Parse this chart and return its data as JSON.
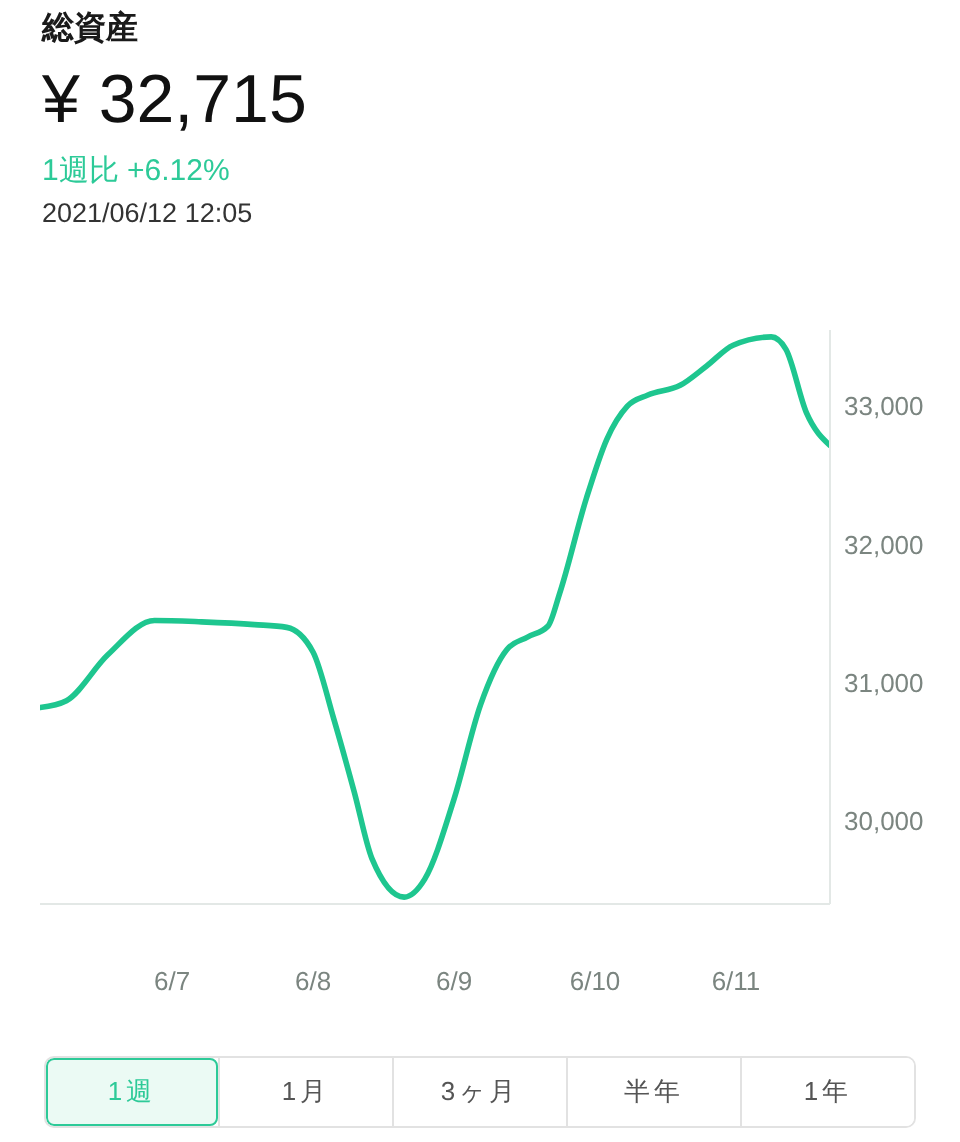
{
  "chart_data": {
    "type": "line",
    "title": "総資産",
    "subtitle": "¥ 32,715",
    "annotations": [
      "1週比 +6.12%",
      "2021/06/12 12:05",
      "1週",
      "1月",
      "3ヶ月",
      "半年",
      "1年"
    ],
    "x": [
      "2021-06-06T01:30",
      "2021-06-06T06:00",
      "2021-06-06T13:00",
      "2021-06-06T21:00",
      "2021-06-07T05:00",
      "2021-06-07T14:00",
      "2021-06-07T19:30",
      "2021-06-08T00:00",
      "2021-06-08T03:30",
      "2021-06-08T07:00",
      "2021-06-08T10:00",
      "2021-06-08T15:30",
      "2021-06-08T19:00",
      "2021-06-09T00:00",
      "2021-06-09T04:30",
      "2021-06-09T09:00",
      "2021-06-09T12:30",
      "2021-06-09T16:00",
      "2021-06-09T18:00",
      "2021-06-09T22:30",
      "2021-06-10T02:00",
      "2021-06-10T05:30",
      "2021-06-10T09:00",
      "2021-06-10T14:30",
      "2021-06-10T19:00",
      "2021-06-10T23:30",
      "2021-06-11T06:00",
      "2021-06-11T08:30",
      "2021-06-11T12:00",
      "2021-06-11T16:00"
    ],
    "values": [
      30820,
      30870,
      31200,
      31450,
      31440,
      31420,
      31400,
      31220,
      30740,
      30210,
      29730,
      29450,
      29580,
      30160,
      30840,
      31240,
      31330,
      31410,
      31650,
      32330,
      32760,
      33000,
      33080,
      33150,
      33290,
      33440,
      33500,
      33410,
      32950,
      32715
    ],
    "color": "#1ec68f",
    "xlim": [
      "2021-06-06T01:30",
      "2021-06-11T16:00"
    ],
    "xticks": [
      {
        "value": "2021-06-07",
        "label": "6/7"
      },
      {
        "value": "2021-06-08",
        "label": "6/8"
      },
      {
        "value": "2021-06-09",
        "label": "6/9"
      },
      {
        "value": "2021-06-10",
        "label": "6/10"
      },
      {
        "value": "2021-06-11",
        "label": "6/11"
      }
    ],
    "ylim": [
      29400,
      33550
    ],
    "yticks": [
      {
        "value": 30000,
        "label": "30,000"
      },
      {
        "value": 31000,
        "label": "31,000"
      },
      {
        "value": 32000,
        "label": "32,000"
      },
      {
        "value": 33000,
        "label": "33,000"
      }
    ]
  }
}
